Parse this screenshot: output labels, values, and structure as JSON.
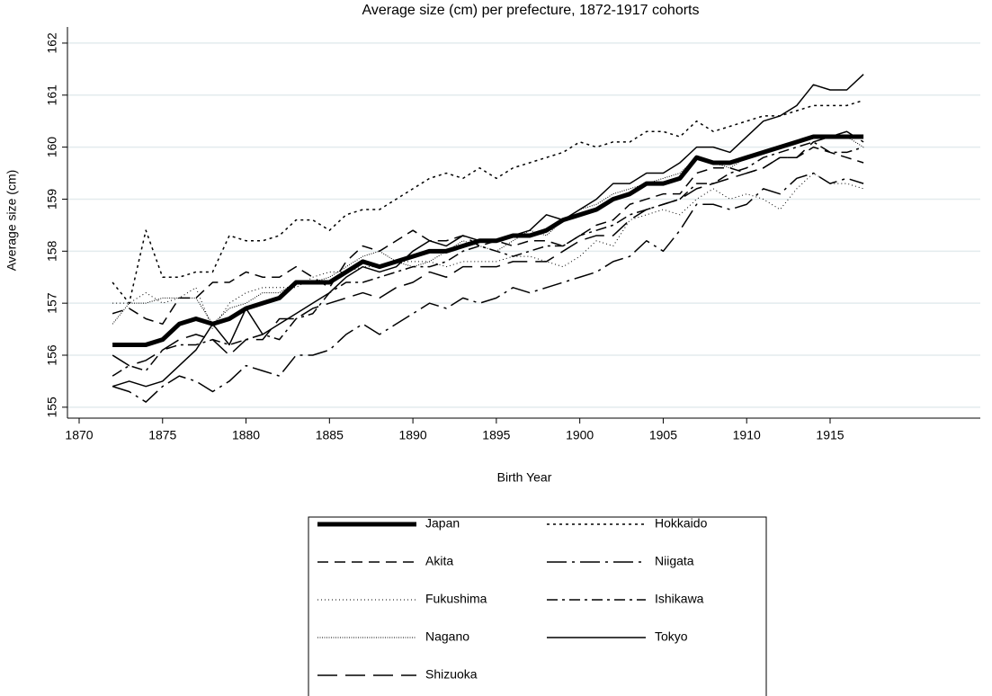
{
  "chart_data": {
    "type": "line",
    "title": "Average size (cm) per prefecture, 1872-1917 cohorts",
    "x_label": "Birth Year",
    "y_label": "Average size (cm)",
    "x": [
      1872,
      1873,
      1874,
      1875,
      1876,
      1877,
      1878,
      1879,
      1880,
      1881,
      1882,
      1883,
      1884,
      1885,
      1886,
      1887,
      1888,
      1889,
      1890,
      1891,
      1892,
      1893,
      1894,
      1895,
      1896,
      1897,
      1898,
      1899,
      1900,
      1901,
      1902,
      1903,
      1904,
      1905,
      1906,
      1907,
      1908,
      1909,
      1910,
      1911,
      1912,
      1913,
      1914,
      1915,
      1916,
      1917
    ],
    "xlim": [
      1869.3,
      1924
    ],
    "xticks": [
      1870,
      1875,
      1880,
      1885,
      1890,
      1895,
      1900,
      1905,
      1910,
      1915
    ],
    "ylim": [
      154.79,
      162.31
    ],
    "yticks": [
      155,
      156,
      157,
      158,
      159,
      160,
      161,
      162
    ],
    "grid": true,
    "series": [
      {
        "name": "Japan",
        "color": "#000000",
        "values": [
          156.2,
          156.2,
          156.2,
          156.3,
          156.6,
          156.7,
          156.6,
          156.7,
          156.9,
          157.0,
          157.1,
          157.4,
          157.4,
          157.4,
          157.6,
          157.8,
          157.7,
          157.8,
          157.9,
          158.0,
          158.0,
          158.1,
          158.2,
          158.2,
          158.3,
          158.3,
          158.4,
          158.6,
          158.7,
          158.8,
          159.0,
          159.1,
          159.3,
          159.3,
          159.4,
          159.8,
          159.7,
          159.7,
          159.8,
          159.9,
          160.0,
          160.1,
          160.2,
          160.2,
          160.2,
          160.2
        ]
      },
      {
        "name": "Hokkaido",
        "color": "#000000",
        "values": [
          157.4,
          157.0,
          158.4,
          157.5,
          157.5,
          157.6,
          157.6,
          158.3,
          158.2,
          158.2,
          158.3,
          158.6,
          158.6,
          158.4,
          158.7,
          158.8,
          158.8,
          159.0,
          159.2,
          159.4,
          159.5,
          159.4,
          159.6,
          159.4,
          159.6,
          159.7,
          159.8,
          159.9,
          160.1,
          160.0,
          160.1,
          160.1,
          160.3,
          160.3,
          160.2,
          160.5,
          160.3,
          160.4,
          160.5,
          160.6,
          160.6,
          160.7,
          160.8,
          160.8,
          160.8,
          160.9
        ]
      },
      {
        "name": "Akita",
        "color": "#000000",
        "values": [
          156.8,
          156.9,
          156.7,
          156.6,
          157.1,
          157.1,
          157.4,
          157.4,
          157.6,
          157.5,
          157.5,
          157.7,
          157.5,
          157.3,
          157.8,
          158.1,
          158.0,
          158.2,
          158.4,
          158.2,
          158.2,
          158.3,
          158.1,
          158.2,
          158.1,
          158.2,
          158.2,
          158.1,
          158.3,
          158.5,
          158.6,
          158.9,
          159.0,
          159.1,
          159.1,
          159.5,
          159.6,
          159.6,
          159.5,
          159.6,
          159.8,
          159.8,
          160.0,
          159.9,
          159.8,
          159.7
        ]
      },
      {
        "name": "Niigata",
        "color": "#000000",
        "values": [
          155.4,
          155.3,
          155.1,
          155.4,
          155.6,
          155.5,
          155.3,
          155.5,
          155.8,
          155.7,
          155.6,
          156.0,
          156.0,
          156.1,
          156.4,
          156.6,
          156.4,
          156.6,
          156.8,
          157.0,
          156.9,
          157.1,
          157.0,
          157.1,
          157.3,
          157.2,
          157.3,
          157.4,
          157.5,
          157.6,
          157.8,
          157.9,
          158.2,
          158.0,
          158.4,
          158.9,
          158.9,
          158.8,
          158.9,
          159.2,
          159.1,
          159.4,
          159.5,
          159.3,
          159.4,
          159.3
        ]
      },
      {
        "name": "Fukushima",
        "color": "#000000",
        "values": [
          157.0,
          157.0,
          157.2,
          157.0,
          157.1,
          157.3,
          156.5,
          157.0,
          157.2,
          157.3,
          157.3,
          157.3,
          157.5,
          157.6,
          157.6,
          157.7,
          157.7,
          157.8,
          157.8,
          157.8,
          157.7,
          157.8,
          157.8,
          157.8,
          157.9,
          157.9,
          157.8,
          157.7,
          157.9,
          158.2,
          158.1,
          158.6,
          158.7,
          158.8,
          158.7,
          159.0,
          159.2,
          159.0,
          159.1,
          159.0,
          158.8,
          159.2,
          159.5,
          159.3,
          159.3,
          159.2
        ]
      },
      {
        "name": "Ishikawa",
        "color": "#000000",
        "values": [
          155.6,
          155.8,
          155.7,
          156.1,
          156.2,
          156.2,
          156.3,
          156.2,
          156.3,
          156.4,
          156.3,
          156.7,
          156.8,
          157.2,
          157.4,
          157.4,
          157.5,
          157.6,
          157.7,
          157.7,
          157.8,
          158.0,
          158.1,
          158.0,
          157.9,
          158.0,
          158.1,
          158.1,
          158.3,
          158.4,
          158.5,
          158.7,
          158.8,
          158.9,
          159.0,
          159.3,
          159.3,
          159.5,
          159.6,
          159.8,
          159.9,
          160.0,
          160.1,
          159.9,
          159.9,
          160.0
        ]
      },
      {
        "name": "Nagano",
        "color": "#000000",
        "values": [
          156.6,
          157.0,
          157.0,
          157.1,
          157.1,
          157.1,
          156.6,
          156.9,
          157.0,
          157.2,
          157.2,
          157.4,
          157.4,
          157.5,
          157.7,
          157.9,
          158.0,
          157.8,
          157.7,
          157.8,
          158.0,
          158.2,
          158.1,
          158.0,
          158.2,
          158.4,
          158.3,
          158.6,
          158.8,
          158.9,
          159.1,
          159.2,
          159.3,
          159.4,
          159.5,
          159.8,
          159.7,
          159.6,
          159.8,
          159.9,
          160.0,
          160.1,
          160.2,
          160.2,
          160.2,
          160.0
        ]
      },
      {
        "name": "Tokyo",
        "color": "#000000",
        "values": [
          155.4,
          155.5,
          155.4,
          155.5,
          155.8,
          156.1,
          156.6,
          156.2,
          156.9,
          156.4,
          156.6,
          156.8,
          157.0,
          157.2,
          157.5,
          157.7,
          157.6,
          157.7,
          158.0,
          158.2,
          158.1,
          158.3,
          158.2,
          158.2,
          158.3,
          158.4,
          158.7,
          158.6,
          158.8,
          159.0,
          159.3,
          159.3,
          159.5,
          159.5,
          159.7,
          160.0,
          160.0,
          159.9,
          160.2,
          160.5,
          160.6,
          160.8,
          161.2,
          161.1,
          161.1,
          161.4
        ]
      },
      {
        "name": "Shizuoka",
        "color": "#000000",
        "values": [
          156.0,
          155.8,
          155.9,
          156.1,
          156.3,
          156.4,
          156.3,
          156.0,
          156.3,
          156.3,
          156.7,
          156.7,
          156.9,
          157.0,
          157.1,
          157.2,
          157.1,
          157.3,
          157.4,
          157.6,
          157.5,
          157.7,
          157.7,
          157.7,
          157.8,
          157.8,
          157.8,
          158.0,
          158.2,
          158.3,
          158.3,
          158.6,
          158.8,
          158.9,
          159.0,
          159.2,
          159.3,
          159.4,
          159.5,
          159.6,
          159.8,
          159.8,
          160.1,
          160.2,
          160.3,
          160.1
        ]
      }
    ]
  }
}
